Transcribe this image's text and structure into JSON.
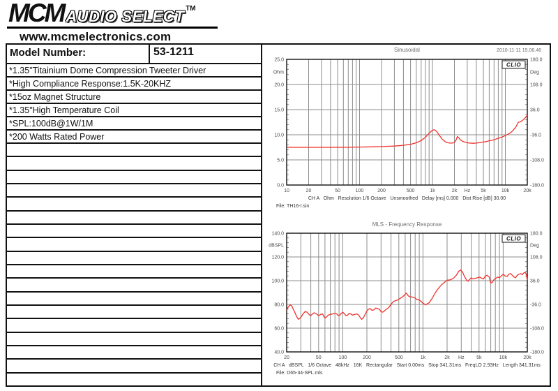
{
  "header": {
    "logo_mcm": "MCM",
    "logo_audio": "AUDIO SELECT",
    "logo_tm": "TM",
    "website": "www.mcmelectronics.com"
  },
  "spec_table": {
    "model_label": "Model Number:",
    "model_value": "53-1211",
    "features": [
      "*1.35\"Titainium Dome Compression Tweeter Driver",
      "*High Compliance Response:1.5K-20KHZ",
      "*15oz Magnet Structure",
      "*1.35\"High Temperature Coil",
      "*SPL:100dB@1W/1M",
      "*200 Watts Rated Power"
    ],
    "empty_row_count": 18
  },
  "chart_data": [
    {
      "type": "line",
      "title": "Sinusoidal",
      "timestamp": "2010-11-11 15.06.46",
      "brand": "CLIO",
      "x_scale": "log",
      "x_range": [
        10,
        20000
      ],
      "x_ticks": [
        [
          10,
          "10"
        ],
        [
          20,
          "20"
        ],
        [
          50,
          "50"
        ],
        [
          100,
          "100"
        ],
        [
          200,
          "200"
        ],
        [
          500,
          "500"
        ],
        [
          1000,
          "1k"
        ],
        [
          2000,
          "2k"
        ],
        [
          3000,
          "Hz"
        ],
        [
          5000,
          "5k"
        ],
        [
          10000,
          "10k"
        ],
        [
          20000,
          "20k"
        ]
      ],
      "y_left": {
        "unit": "Ohm",
        "range": [
          0,
          25
        ],
        "ticks": [
          "25.0",
          "20.0",
          "15.0",
          "10.0",
          "5.0",
          "0.0"
        ]
      },
      "y_right": {
        "unit": "Deg",
        "range": [
          -180,
          180
        ],
        "ticks": [
          "180.0",
          "108.0",
          "36.0",
          "-36.0",
          "-108.0",
          "-180.0"
        ]
      },
      "footer": "CH A   Ohm   Resolution 1/6 Octave   Unsmoothed   Delay [ms] 0.000   Dist Rise [dB] 30.00",
      "file_label": "File: TH16-I.sin",
      "line_color": "#ee332d",
      "grid_color": "#8d8d8d",
      "series": [
        {
          "name": "Impedance (Ohm)",
          "points": [
            [
              10,
              7.5
            ],
            [
              20,
              7.5
            ],
            [
              40,
              7.5
            ],
            [
              70,
              7.5
            ],
            [
              100,
              7.55
            ],
            [
              150,
              7.6
            ],
            [
              200,
              7.65
            ],
            [
              300,
              7.75
            ],
            [
              400,
              7.9
            ],
            [
              500,
              8.1
            ],
            [
              600,
              8.4
            ],
            [
              700,
              8.85
            ],
            [
              800,
              9.5
            ],
            [
              900,
              10.3
            ],
            [
              1000,
              10.9
            ],
            [
              1060,
              11.0
            ],
            [
              1150,
              10.6
            ],
            [
              1250,
              9.8
            ],
            [
              1350,
              9.2
            ],
            [
              1500,
              8.6
            ],
            [
              1700,
              8.35
            ],
            [
              1900,
              8.35
            ],
            [
              2000,
              8.5
            ],
            [
              2100,
              8.9
            ],
            [
              2200,
              9.65
            ],
            [
              2300,
              9.4
            ],
            [
              2400,
              9.0
            ],
            [
              2600,
              8.7
            ],
            [
              2900,
              8.45
            ],
            [
              3200,
              8.35
            ],
            [
              3600,
              8.3
            ],
            [
              4000,
              8.35
            ],
            [
              4500,
              8.45
            ],
            [
              5000,
              8.55
            ],
            [
              5500,
              8.65
            ],
            [
              6000,
              8.8
            ],
            [
              7000,
              9.0
            ],
            [
              8000,
              9.3
            ],
            [
              9000,
              9.55
            ],
            [
              10000,
              9.85
            ],
            [
              11000,
              10.15
            ],
            [
              12000,
              10.5
            ],
            [
              13000,
              11.0
            ],
            [
              14000,
              11.6
            ],
            [
              14800,
              12.3
            ],
            [
              15200,
              12.5
            ],
            [
              16000,
              12.55
            ],
            [
              17000,
              12.8
            ],
            [
              18000,
              13.1
            ],
            [
              19000,
              13.5
            ],
            [
              20000,
              13.9
            ]
          ]
        }
      ]
    },
    {
      "type": "line",
      "title": "MLS - Frequency Response",
      "timestamp": "",
      "brand": "CLIO",
      "x_scale": "log",
      "x_range": [
        20,
        20000
      ],
      "x_ticks": [
        [
          20,
          "20"
        ],
        [
          50,
          "50"
        ],
        [
          100,
          "100"
        ],
        [
          200,
          "200"
        ],
        [
          500,
          "500"
        ],
        [
          1000,
          "1k"
        ],
        [
          2000,
          "2k"
        ],
        [
          3000,
          "Hz"
        ],
        [
          5000,
          "5k"
        ],
        [
          10000,
          "10k"
        ],
        [
          20000,
          "20k"
        ]
      ],
      "y_left": {
        "unit": "dBSPL",
        "range": [
          40,
          140
        ],
        "ticks": [
          "140.0",
          "120.0",
          "100.0",
          "80.0",
          "60.0",
          "40.0"
        ]
      },
      "y_right": {
        "unit": "Deg",
        "range": [
          -180,
          180
        ],
        "ticks": [
          "180.0",
          "108.0",
          "36.0",
          "-36.0",
          "-108.0",
          "-180.0"
        ]
      },
      "footer": "CH A   dBSPL   1/6 Octave   48kHz   16K   Rectangular   Start 0.00ms   Stop 341.31ms   FreqLO 2.93Hz   Length 341.31ms",
      "file_label": "File: D65-34-SPL.mls",
      "line_color": "#ee332d",
      "grid_color": "#8d8d8d",
      "series": [
        {
          "name": "SPL (dB)",
          "points": [
            [
              20,
              75
            ],
            [
              21,
              78
            ],
            [
              22,
              79.5
            ],
            [
              23,
              79
            ],
            [
              25,
              74
            ],
            [
              27,
              69
            ],
            [
              28,
              67.5
            ],
            [
              30,
              69
            ],
            [
              32,
              72
            ],
            [
              34,
              74
            ],
            [
              36,
              73.5
            ],
            [
              38,
              71.5
            ],
            [
              40,
              70.5
            ],
            [
              42,
              72
            ],
            [
              44,
              73
            ],
            [
              47,
              72
            ],
            [
              50,
              70.5
            ],
            [
              53,
              71.5
            ],
            [
              56,
              72
            ],
            [
              58,
              70
            ],
            [
              60,
              68.5
            ],
            [
              63,
              69.5
            ],
            [
              66,
              71
            ],
            [
              70,
              71.5
            ],
            [
              75,
              72
            ],
            [
              80,
              72.5
            ],
            [
              84,
              72
            ],
            [
              88,
              70.5
            ],
            [
              92,
              71
            ],
            [
              96,
              72.5
            ],
            [
              100,
              73.5
            ],
            [
              105,
              72
            ],
            [
              110,
              70.5
            ],
            [
              115,
              71
            ],
            [
              120,
              72.5
            ],
            [
              126,
              72
            ],
            [
              132,
              71
            ],
            [
              140,
              71.5
            ],
            [
              150,
              72
            ],
            [
              158,
              71
            ],
            [
              165,
              69
            ],
            [
              172,
              67.5
            ],
            [
              180,
              68.5
            ],
            [
              190,
              71.5
            ],
            [
              200,
              74.5
            ],
            [
              210,
              76
            ],
            [
              220,
              76.5
            ],
            [
              232,
              75
            ],
            [
              245,
              75.5
            ],
            [
              258,
              77
            ],
            [
              270,
              76.5
            ],
            [
              285,
              76
            ],
            [
              300,
              74
            ],
            [
              315,
              73.5
            ],
            [
              330,
              74.5
            ],
            [
              350,
              76
            ],
            [
              370,
              77
            ],
            [
              390,
              79
            ],
            [
              410,
              81
            ],
            [
              430,
              82.5
            ],
            [
              450,
              83
            ],
            [
              475,
              83.5
            ],
            [
              500,
              84.5
            ],
            [
              530,
              85.5
            ],
            [
              560,
              86.5
            ],
            [
              590,
              88
            ],
            [
              620,
              89.5
            ],
            [
              650,
              87.5
            ],
            [
              680,
              86.5
            ],
            [
              710,
              86.5
            ],
            [
              750,
              86
            ],
            [
              800,
              85.5
            ],
            [
              840,
              84
            ],
            [
              880,
              84
            ],
            [
              930,
              83
            ],
            [
              980,
              81.5
            ],
            [
              1030,
              80.5
            ],
            [
              1080,
              79.5
            ],
            [
              1130,
              80.5
            ],
            [
              1200,
              81.5
            ],
            [
              1300,
              85
            ],
            [
              1400,
              89
            ],
            [
              1500,
              92
            ],
            [
              1600,
              94.5
            ],
            [
              1700,
              96.5
            ],
            [
              1850,
              98.5
            ],
            [
              2000,
              100.5
            ],
            [
              2100,
              100.5
            ],
            [
              2250,
              101
            ],
            [
              2400,
              102
            ],
            [
              2600,
              104.5
            ],
            [
              2800,
              108
            ],
            [
              2950,
              109
            ],
            [
              3100,
              107.5
            ],
            [
              3300,
              103.5
            ],
            [
              3500,
              100.5
            ],
            [
              3650,
              99.5
            ],
            [
              3800,
              101
            ],
            [
              4000,
              102.5
            ],
            [
              4200,
              101.5
            ],
            [
              4500,
              102
            ],
            [
              4800,
              102.5
            ],
            [
              5100,
              103
            ],
            [
              5400,
              102
            ],
            [
              5700,
              101.5
            ],
            [
              6000,
              104
            ],
            [
              6300,
              104.5
            ],
            [
              6700,
              103
            ],
            [
              7000,
              98
            ],
            [
              7300,
              98.5
            ],
            [
              7700,
              101
            ],
            [
              8100,
              102
            ],
            [
              8500,
              103
            ],
            [
              9000,
              102.5
            ],
            [
              9500,
              104
            ],
            [
              10000,
              105.5
            ],
            [
              10600,
              104
            ],
            [
              11200,
              103.5
            ],
            [
              11800,
              105.5
            ],
            [
              12400,
              106
            ],
            [
              13000,
              104.5
            ],
            [
              13700,
              103
            ],
            [
              14300,
              102.5
            ],
            [
              15000,
              104.5
            ],
            [
              15800,
              105.5
            ],
            [
              16600,
              106
            ],
            [
              17300,
              105
            ],
            [
              18000,
              106.5
            ],
            [
              18800,
              107
            ],
            [
              19400,
              105.5
            ],
            [
              20000,
              100.5
            ]
          ]
        }
      ]
    }
  ]
}
